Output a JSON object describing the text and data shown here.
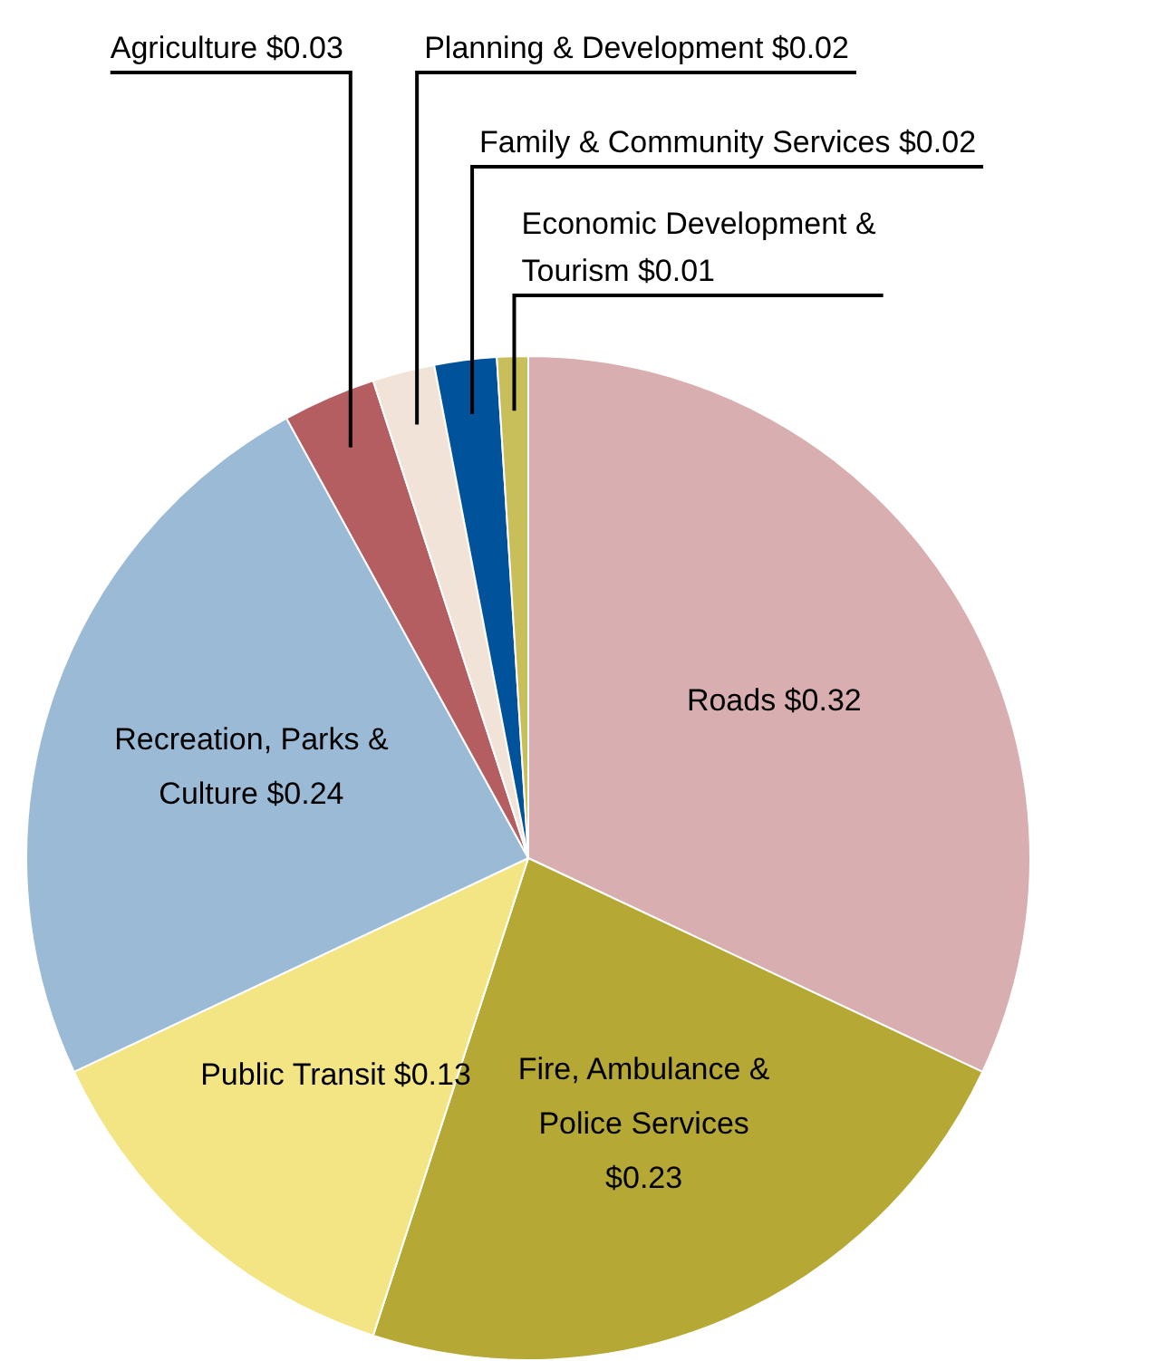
{
  "chart_data": {
    "type": "pie",
    "categories": [
      "Roads",
      "Fire, Ambulance & Police Services",
      "Public Transit",
      "Recreation, Parks & Culture",
      "Agriculture",
      "Planning & Development",
      "Family & Community Services",
      "Economic Development & Tourism"
    ],
    "values": [
      0.32,
      0.23,
      0.13,
      0.24,
      0.03,
      0.02,
      0.02,
      0.01
    ],
    "value_labels": [
      "$0.32",
      "$0.23",
      "$0.13",
      "$0.24",
      "$0.03",
      "$0.02",
      "$0.02",
      "$0.01"
    ],
    "colors": [
      "#d8aeb0",
      "#b5a835",
      "#f3e583",
      "#9bbad6",
      "#b45e62",
      "#f2e3d9",
      "#00529b",
      "#c8bf5a"
    ],
    "legend": false
  }
}
